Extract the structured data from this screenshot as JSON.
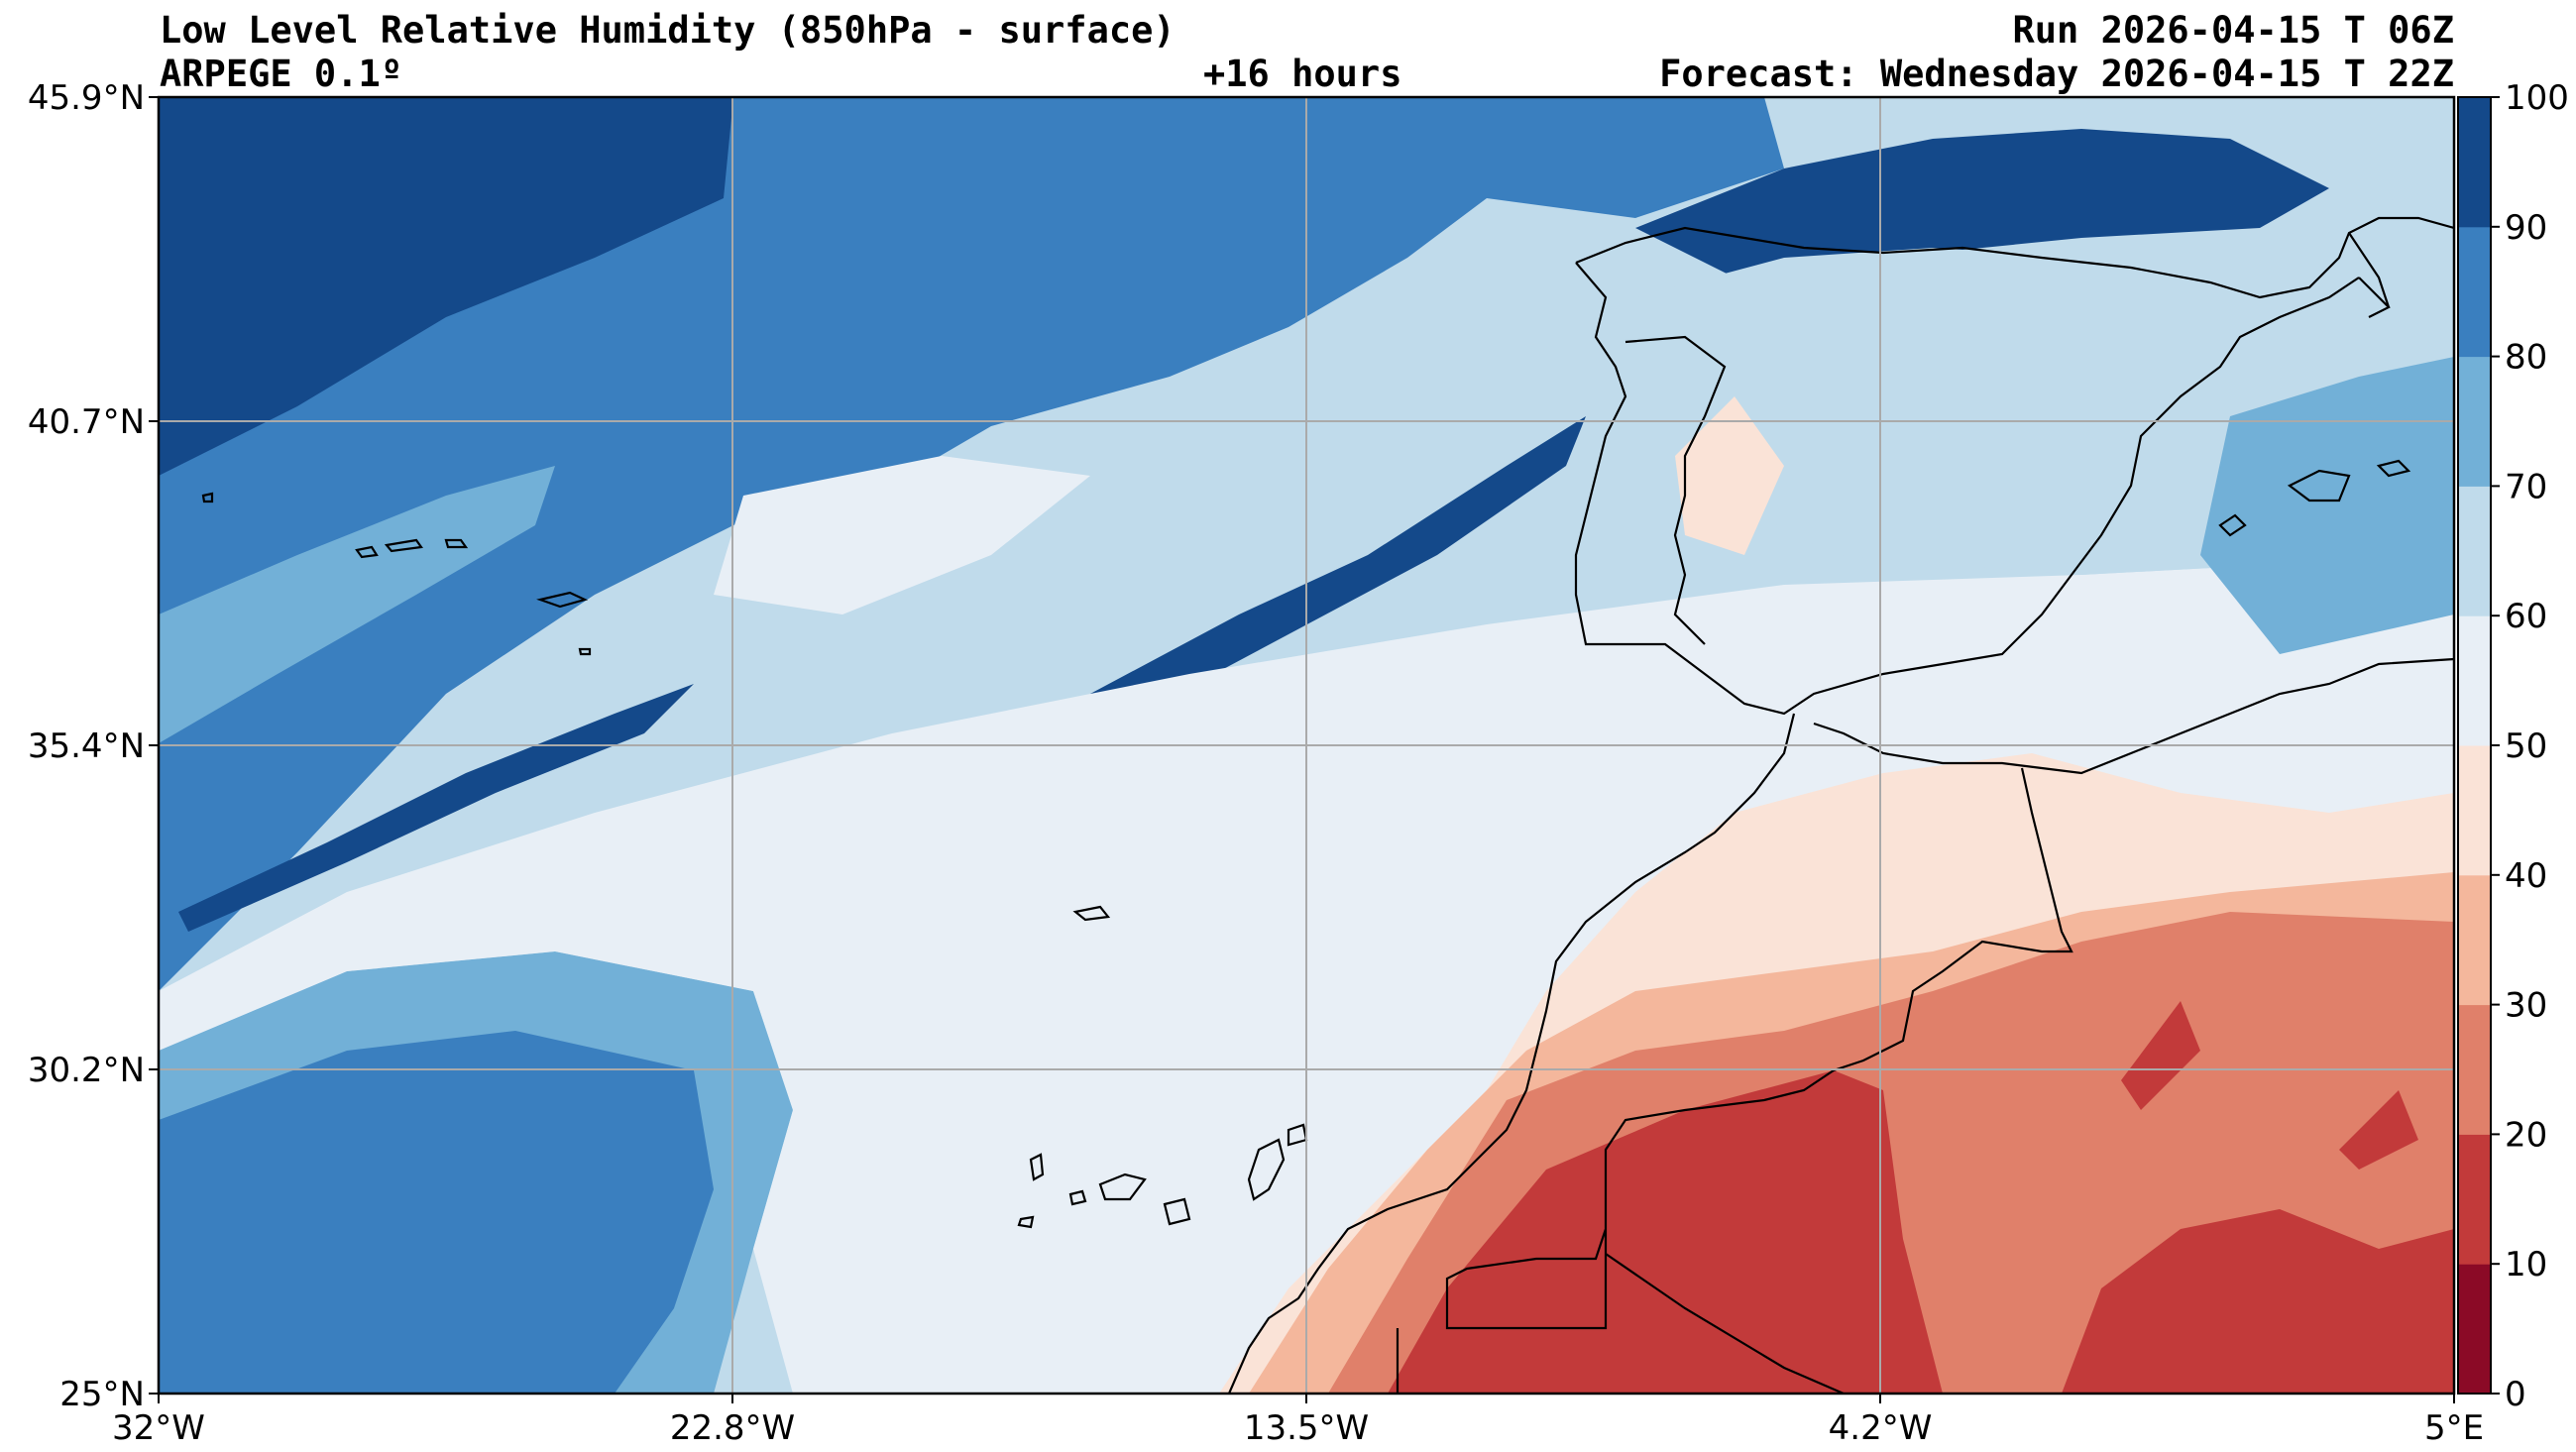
{
  "header": {
    "title": "Low Level Relative Humidity (850hPa - surface)",
    "model": "ARPEGE 0.1º",
    "lead": "+16 hours",
    "run": "Run 2026-04-15 T 06Z",
    "forecast": "Forecast: Wednesday 2026-04-15 T 22Z"
  },
  "map": {
    "lon_range": [
      -32,
      5
    ],
    "lat_range": [
      25,
      45.9
    ],
    "lon_ticks": [
      "32°W",
      "22.8°W",
      "13.5°W",
      "4.2°W",
      "5°E"
    ],
    "lat_ticks": [
      "45.9°N",
      "40.7°N",
      "35.4°N",
      "30.2°N",
      "25°N"
    ],
    "grid": true
  },
  "colorbar": {
    "variable": "relative humidity",
    "levels": [
      "0",
      "10",
      "20",
      "30",
      "40",
      "50",
      "60",
      "70",
      "80",
      "90",
      "100"
    ],
    "colors": [
      "#8b0a26",
      "#c23a3a",
      "#e0806a",
      "#f4b79c",
      "#fae3d7",
      "#e8eff6",
      "#c0dbeb",
      "#72b0d7",
      "#3a7fbf",
      "#14498a"
    ]
  }
}
